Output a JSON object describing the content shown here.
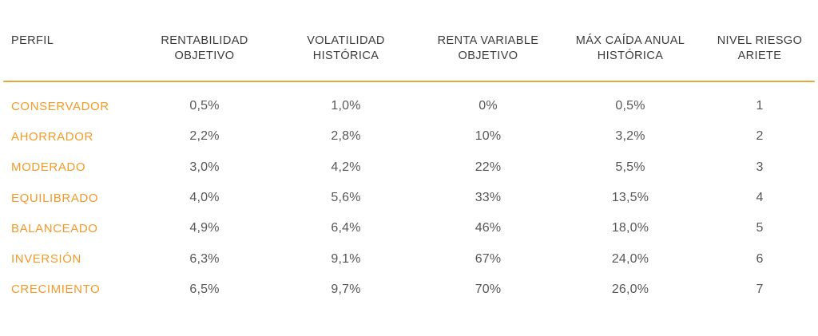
{
  "colors": {
    "profile_text": "#f39a27",
    "divider_line": "#e0a83e",
    "header_text": "#3c3c3b",
    "value_text": "#575756",
    "background": "#ffffff"
  },
  "chart_data": {
    "type": "table",
    "columns": [
      "PERFIL",
      "RENTABILIDAD\nOBJETIVO",
      "VOLATILIDAD\nHISTÓRICA",
      "RENTA VARIABLE\nOBJETIVO",
      "MÁX CAÍDA ANUAL\nHISTÓRICA",
      "NIVEL RIESGO\nARIETE"
    ],
    "rows": [
      [
        "CONSERVADOR",
        "0,5%",
        "1,0%",
        "0%",
        "0,5%",
        "1"
      ],
      [
        "AHORRADOR",
        "2,2%",
        "2,8%",
        "10%",
        "3,2%",
        "2"
      ],
      [
        "MODERADO",
        "3,0%",
        "4,2%",
        "22%",
        "5,5%",
        "3"
      ],
      [
        "EQUILIBRADO",
        "4,0%",
        "5,6%",
        "33%",
        "13,5%",
        "4"
      ],
      [
        "BALANCEADO",
        "4,9%",
        "6,4%",
        "46%",
        "18,0%",
        "5"
      ],
      [
        "INVERSIÓN",
        "6,3%",
        "9,1%",
        "67%",
        "24,0%",
        "6"
      ],
      [
        "CRECIMIENTO",
        "6,5%",
        "9,7%",
        "70%",
        "26,0%",
        "7"
      ]
    ]
  }
}
